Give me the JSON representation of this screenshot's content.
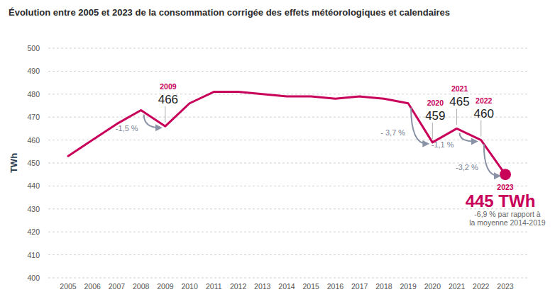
{
  "chart_data": {
    "type": "line",
    "title": "Évolution entre 2005 et 2023 de la consommation corrigée des effets météorologiques et calendaires",
    "y_label": "TWh",
    "categories": [
      "2005",
      "2006",
      "2007",
      "2008",
      "2009",
      "2010",
      "2011",
      "2012",
      "2013",
      "2014",
      "2015",
      "2016",
      "2017",
      "2018",
      "2019",
      "2020",
      "2021",
      "2022",
      "2023"
    ],
    "values": [
      453,
      460,
      467,
      473,
      466,
      476,
      481,
      481,
      480,
      479,
      479,
      478,
      479,
      478,
      476,
      459,
      465,
      460,
      445
    ],
    "value_labels": [
      null,
      null,
      null,
      null,
      "466",
      null,
      null,
      null,
      null,
      null,
      null,
      null,
      null,
      null,
      null,
      "459",
      "465",
      "460",
      "445 TWh"
    ],
    "color": "#c8005a",
    "ylim": [
      400,
      500
    ],
    "yticks": [
      400,
      410,
      420,
      430,
      440,
      450,
      460,
      470,
      480,
      490,
      500
    ],
    "grid": true,
    "annotations": [
      {
        "x": "2009",
        "text": "2009"
      },
      {
        "x": "2020",
        "text": "2020"
      },
      {
        "x": "2021",
        "text": "2021"
      },
      {
        "x": "2022",
        "text": "2022"
      },
      {
        "x": "2023",
        "text": "2023"
      }
    ],
    "changes": [
      {
        "from": "2008",
        "to": "2009",
        "text": "-1,5 %"
      },
      {
        "from": "2019",
        "to": "2020",
        "text": "- 3,7 %"
      },
      {
        "from": "2021",
        "to": "2022",
        "text": "-1,1 %"
      },
      {
        "from": "2022",
        "to": "2023",
        "text": "-3,2 %"
      }
    ],
    "note": [
      "-6,9 % par rapport à",
      "la moyenne 2014-2019"
    ]
  }
}
